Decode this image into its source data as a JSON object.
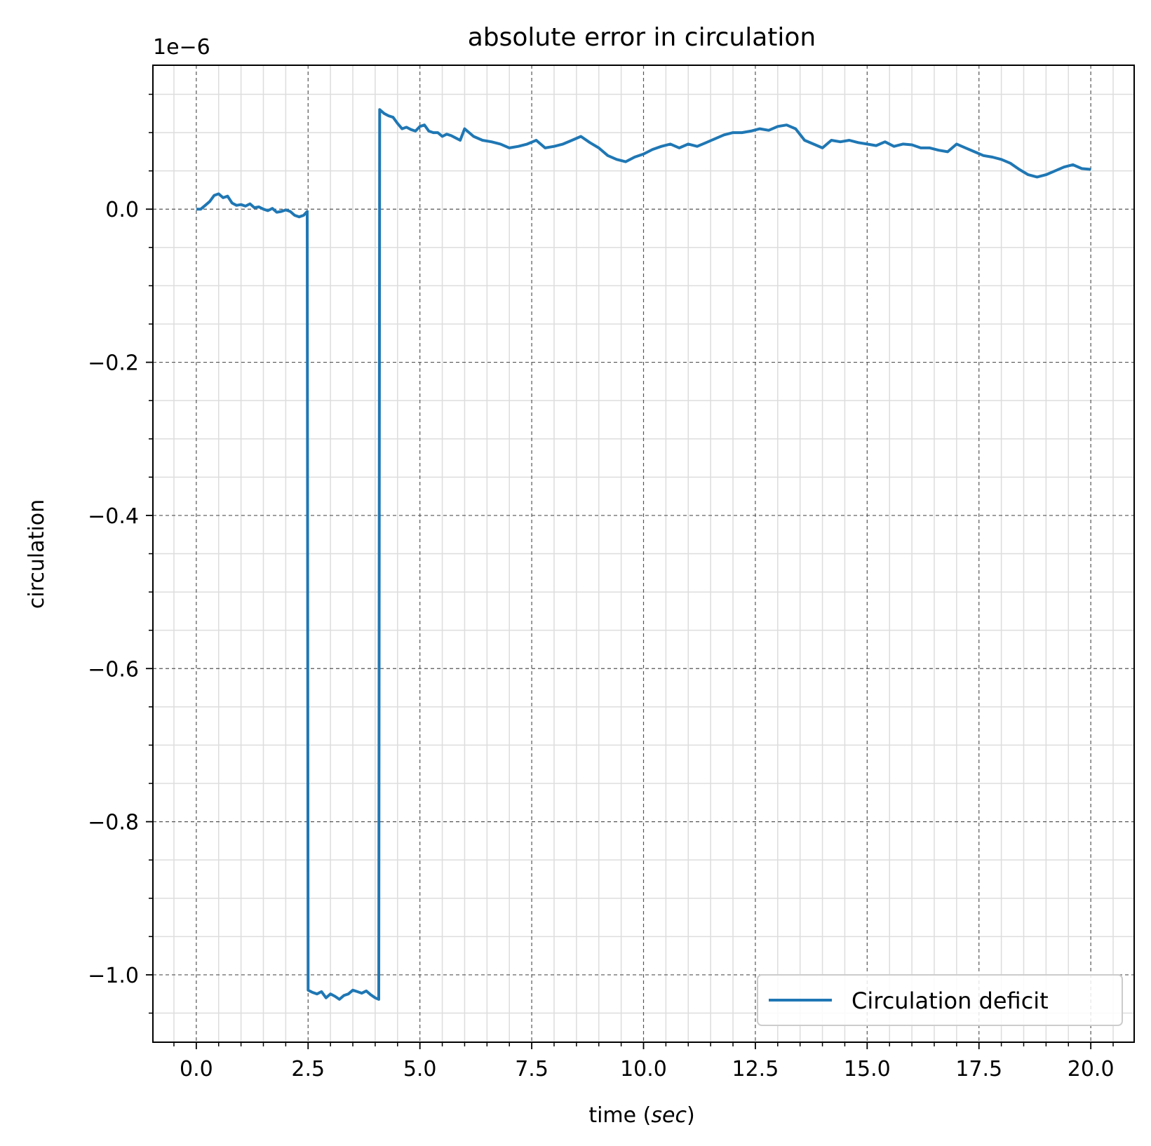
{
  "chart_data": {
    "type": "line",
    "title": "absolute error in circulation",
    "xlabel_prefix": "time (",
    "xlabel_unit": "sec",
    "xlabel_suffix": ")",
    "ylabel": "circulation",
    "offset_text": "1e−6",
    "xlim": [
      -0.97,
      20.97
    ],
    "ylim": [
      -1.088,
      0.188
    ],
    "x_ticks": [
      0.0,
      2.5,
      5.0,
      7.5,
      10.0,
      12.5,
      15.0,
      17.5,
      20.0
    ],
    "x_tick_labels": [
      "0.0",
      "2.5",
      "5.0",
      "7.5",
      "10.0",
      "12.5",
      "15.0",
      "17.5",
      "20.0"
    ],
    "y_ticks": [
      0.0,
      -0.2,
      -0.4,
      -0.6,
      -0.8,
      -1.0
    ],
    "y_tick_labels": [
      "0.0",
      "−0.2",
      "−0.4",
      "−0.6",
      "−0.8",
      "−1.0"
    ],
    "grid": true,
    "minor_grid": true,
    "legend_position": "lower-right",
    "series": [
      {
        "name": "Circulation deficit",
        "color": "#1f77b4",
        "x": [
          0.0,
          0.1,
          0.2,
          0.3,
          0.4,
          0.5,
          0.6,
          0.7,
          0.8,
          0.9,
          1.0,
          1.1,
          1.2,
          1.3,
          1.4,
          1.5,
          1.6,
          1.7,
          1.8,
          1.9,
          2.0,
          2.1,
          2.2,
          2.3,
          2.4,
          2.48,
          2.5,
          2.6,
          2.7,
          2.8,
          2.9,
          3.0,
          3.1,
          3.2,
          3.3,
          3.4,
          3.5,
          3.6,
          3.7,
          3.8,
          3.9,
          4.0,
          4.08,
          4.1,
          4.2,
          4.3,
          4.4,
          4.5,
          4.6,
          4.7,
          4.8,
          4.9,
          5.0,
          5.1,
          5.2,
          5.3,
          5.4,
          5.5,
          5.6,
          5.7,
          5.8,
          5.9,
          6.0,
          6.2,
          6.4,
          6.6,
          6.8,
          7.0,
          7.2,
          7.4,
          7.6,
          7.8,
          8.0,
          8.2,
          8.4,
          8.6,
          8.8,
          9.0,
          9.2,
          9.4,
          9.6,
          9.8,
          10.0,
          10.2,
          10.4,
          10.6,
          10.8,
          11.0,
          11.2,
          11.4,
          11.6,
          11.8,
          12.0,
          12.2,
          12.4,
          12.6,
          12.8,
          13.0,
          13.2,
          13.4,
          13.6,
          13.8,
          14.0,
          14.2,
          14.4,
          14.6,
          14.8,
          15.0,
          15.2,
          15.4,
          15.6,
          15.8,
          16.0,
          16.2,
          16.4,
          16.6,
          16.8,
          17.0,
          17.2,
          17.4,
          17.6,
          17.8,
          18.0,
          18.2,
          18.4,
          18.6,
          18.8,
          19.0,
          19.2,
          19.4,
          19.6,
          19.8,
          20.0
        ],
        "y": [
          0.0,
          0.0,
          0.005,
          0.01,
          0.018,
          0.02,
          0.015,
          0.017,
          0.008,
          0.005,
          0.006,
          0.004,
          0.007,
          0.002,
          0.003,
          0.0,
          -0.002,
          0.001,
          -0.004,
          -0.003,
          -0.001,
          -0.003,
          -0.008,
          -0.01,
          -0.008,
          -0.003,
          -1.02,
          -1.023,
          -1.025,
          -1.022,
          -1.03,
          -1.025,
          -1.028,
          -1.032,
          -1.027,
          -1.025,
          -1.02,
          -1.022,
          -1.024,
          -1.021,
          -1.026,
          -1.03,
          -1.032,
          0.13,
          0.125,
          0.122,
          0.12,
          0.112,
          0.105,
          0.107,
          0.104,
          0.102,
          0.108,
          0.11,
          0.102,
          0.1,
          0.1,
          0.095,
          0.098,
          0.096,
          0.093,
          0.09,
          0.105,
          0.095,
          0.09,
          0.088,
          0.085,
          0.08,
          0.082,
          0.085,
          0.09,
          0.08,
          0.082,
          0.085,
          0.09,
          0.095,
          0.087,
          0.08,
          0.07,
          0.065,
          0.062,
          0.068,
          0.072,
          0.078,
          0.082,
          0.085,
          0.08,
          0.085,
          0.082,
          0.087,
          0.092,
          0.097,
          0.1,
          0.1,
          0.102,
          0.105,
          0.103,
          0.108,
          0.11,
          0.105,
          0.09,
          0.085,
          0.08,
          0.09,
          0.088,
          0.09,
          0.087,
          0.085,
          0.083,
          0.088,
          0.082,
          0.085,
          0.084,
          0.08,
          0.08,
          0.077,
          0.075,
          0.085,
          0.08,
          0.075,
          0.07,
          0.068,
          0.065,
          0.06,
          0.052,
          0.045,
          0.042,
          0.045,
          0.05,
          0.055,
          0.058,
          0.053,
          0.052
        ]
      }
    ]
  }
}
